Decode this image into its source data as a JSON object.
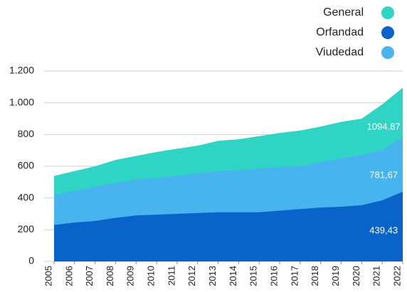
{
  "chart_data": {
    "type": "area",
    "categories": [
      "2005",
      "2006",
      "2007",
      "2008",
      "2009",
      "2010",
      "2011",
      "2012",
      "2013",
      "2014",
      "2015",
      "2016",
      "2017",
      "2018",
      "2019",
      "2020",
      "2021",
      "2022"
    ],
    "series": [
      {
        "name": "General",
        "color": "#2fd4c5",
        "values": [
          539,
          570,
          600,
          640,
          665,
          690,
          710,
          730,
          760,
          770,
          790,
          810,
          825,
          850,
          880,
          900,
          990,
          1094.87
        ],
        "value_labels": {
          "17": "1094,87"
        }
      },
      {
        "name": "Orfandad",
        "color": "#0a63c9",
        "values": [
          230,
          245,
          255,
          275,
          290,
          295,
          300,
          305,
          310,
          310,
          310,
          320,
          330,
          340,
          345,
          355,
          385,
          439.43
        ],
        "value_labels": {
          "17": "439,43"
        }
      },
      {
        "name": "Viudedad",
        "color": "#47b4f0",
        "values": [
          420,
          445,
          470,
          495,
          515,
          525,
          540,
          555,
          570,
          575,
          585,
          595,
          600,
          625,
          650,
          670,
          700,
          781.67
        ],
        "value_labels": {
          "17": "781,67"
        }
      }
    ],
    "ylim": [
      0,
      1200
    ],
    "yticks": [
      0,
      200,
      400,
      600,
      800,
      {
        "value": 1000,
        "label": "1.000"
      },
      {
        "value": 1200,
        "label": "1.200"
      }
    ],
    "grid": true,
    "legend": "top-right"
  }
}
